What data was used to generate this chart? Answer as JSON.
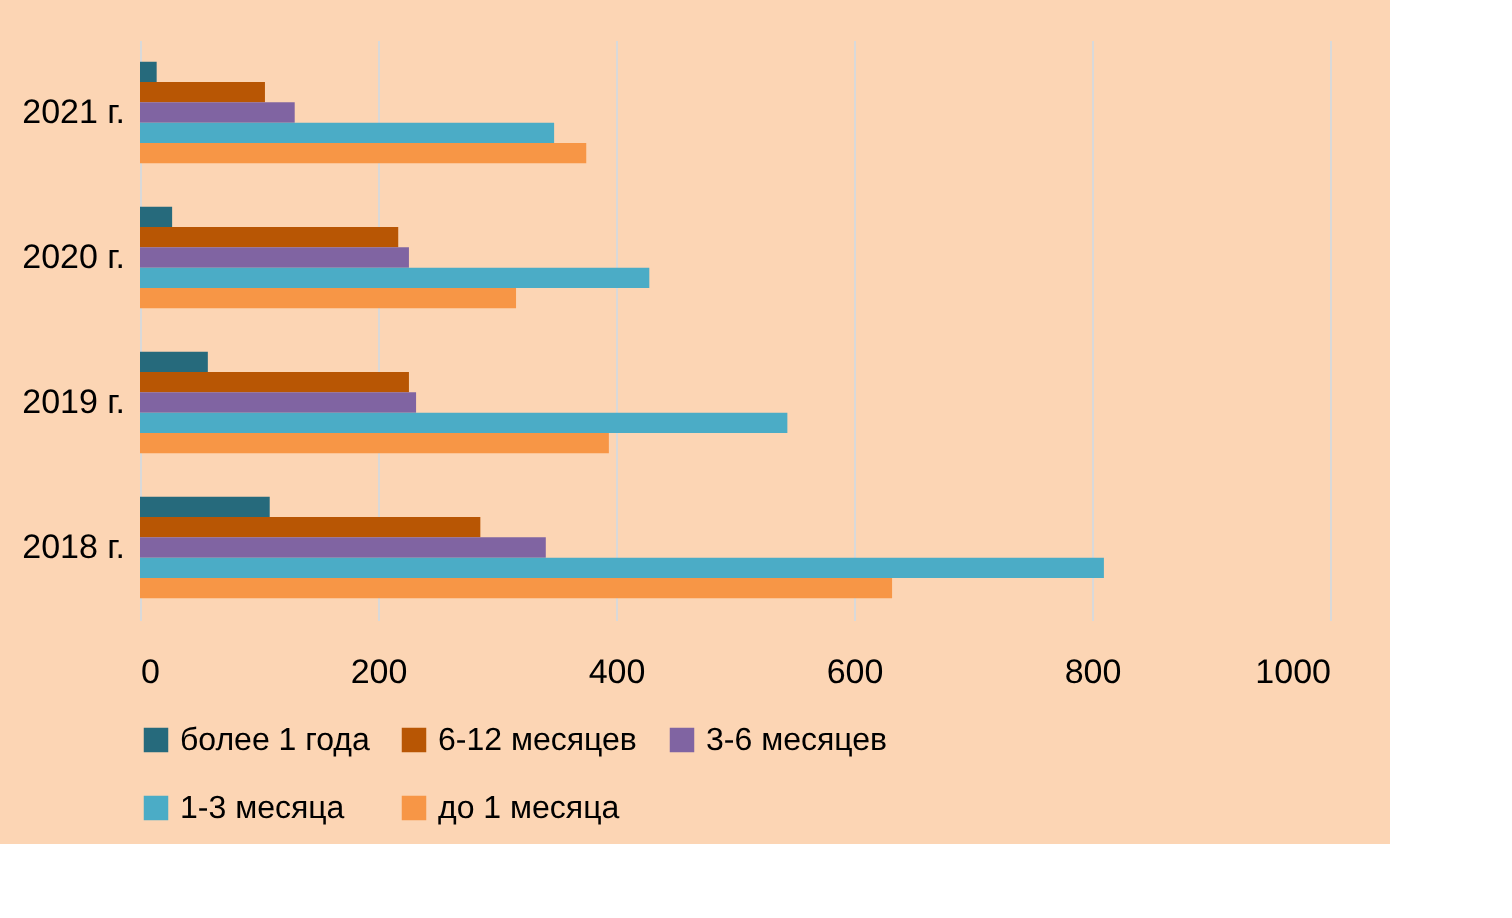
{
  "chart_data": {
    "type": "bar",
    "orientation": "horizontal",
    "categories": [
      "2021 г.",
      "2020 г.",
      "2019 г.",
      "2018 г."
    ],
    "series": [
      {
        "name": "более 1 года",
        "color": "#266a7c",
        "values": [
          14,
          27,
          57,
          109
        ]
      },
      {
        "name": "6-12 месяцев",
        "color": "#b85604",
        "values": [
          105,
          217,
          226,
          286
        ]
      },
      {
        "name": "3-6 месяцев",
        "color": "#8064a2",
        "values": [
          130,
          226,
          232,
          341
        ]
      },
      {
        "name": "1-3 месяца",
        "color": "#4bacc6",
        "values": [
          348,
          428,
          544,
          810
        ]
      },
      {
        "name": "до 1 месяца",
        "color": "#f79646",
        "values": [
          375,
          316,
          394,
          632
        ]
      }
    ],
    "xlim": [
      0,
      1000
    ],
    "xticks": [
      0,
      200,
      400,
      600,
      800,
      1000
    ],
    "grid": "x",
    "legend": "bottom"
  }
}
